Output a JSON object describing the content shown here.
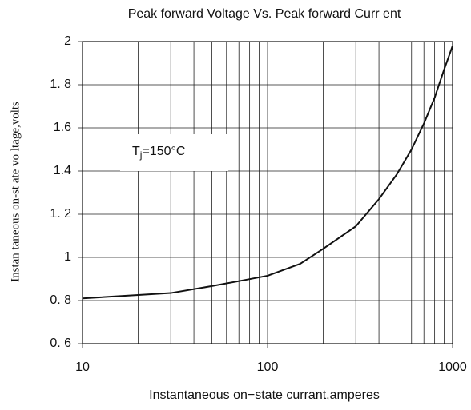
{
  "chart_data": {
    "type": "line",
    "title": "Peak forward Voltage  Vs. Peak forward Curr ent",
    "x_label": "Instantaneous on−state currant,amperes",
    "y_label": "Instan taneous on-st ate vo ltage,volts",
    "annotation": {
      "base": "T",
      "subscript": "j",
      "rest": "=150°C"
    },
    "x": [
      10,
      20,
      30,
      50,
      70,
      100,
      150,
      200,
      300,
      400,
      500,
      600,
      700,
      800,
      900,
      1000
    ],
    "series": [
      {
        "name": "Tj=150°C",
        "color": "#111111",
        "values": [
          0.81,
          0.826,
          0.835,
          0.867,
          0.89,
          0.915,
          0.97,
          1.04,
          1.144,
          1.27,
          1.385,
          1.5,
          1.62,
          1.74,
          1.87,
          1.98
        ]
      }
    ],
    "xlim": [
      10,
      1000
    ],
    "xticks": [
      10,
      100,
      1000
    ],
    "x_log": true,
    "ylim": [
      0.6,
      2
    ],
    "yticks": [
      {
        "value": 0.6,
        "label": "0. 6"
      },
      {
        "value": 0.8,
        "label": "0. 8"
      },
      1,
      {
        "value": 1.2,
        "label": "1. 2"
      },
      1.4,
      1.6,
      {
        "value": 1.8,
        "label": "1. 8"
      },
      2
    ],
    "grid": true
  }
}
